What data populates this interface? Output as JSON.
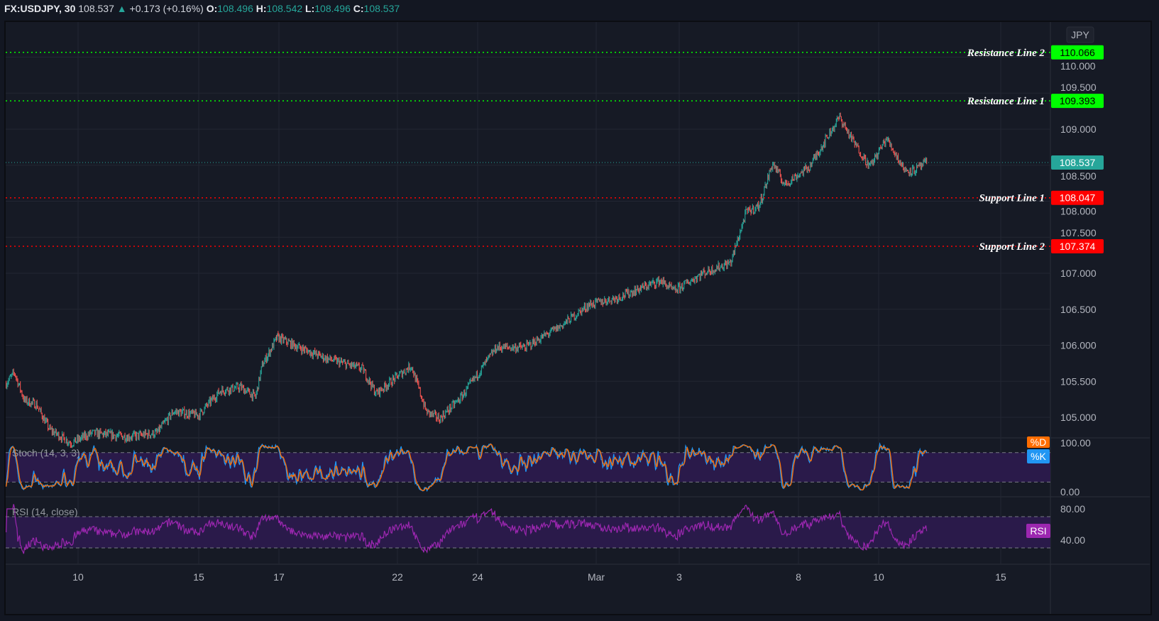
{
  "header": {
    "symbol": "FX:USDJPY, 30",
    "last": "108.537",
    "change_icon": "triangle-up-icon",
    "change": "+0.173 (+0.16%)",
    "o_label": "O:",
    "o": "108.496",
    "h_label": "H:",
    "h": "108.542",
    "l_label": "L:",
    "l": "108.496",
    "c_label": "C:",
    "c": "108.537"
  },
  "currency": "JPY",
  "colors": {
    "up": "#26a69a",
    "down": "#ef5350",
    "resistance": "#00ff00",
    "support": "#ff0000",
    "stoch_k": "#2196f3",
    "stoch_d": "#ff6d00",
    "rsi": "#9c27b0",
    "band": "#2a1a4a"
  },
  "chart_data": [
    {
      "type": "candlestick",
      "title": "FX:USDJPY, 30",
      "ylim": [
        104.6,
        110.4
      ],
      "y_ticks": [
        "105.000",
        "105.500",
        "106.000",
        "106.500",
        "107.000",
        "107.500",
        "108.000",
        "108.500",
        "109.000",
        "109.500",
        "110.000"
      ],
      "x_ticks": [
        "10",
        "15",
        "17",
        "22",
        "24",
        "Mar",
        "3",
        "8",
        "10",
        "15"
      ],
      "price_path": [
        [
          "Feb 08 05:00",
          105.47
        ],
        [
          "Feb 08 10:00",
          105.62
        ],
        [
          "Feb 08 16:00",
          105.23
        ],
        [
          "Feb 08 23:00",
          105.18
        ],
        [
          "Feb 09 07:00",
          104.83
        ],
        [
          "Feb 09 20:00",
          104.64
        ],
        [
          "Feb 10 08:00",
          104.78
        ],
        [
          "Feb 11 06:00",
          104.73
        ],
        [
          "Feb 11 23:00",
          104.78
        ],
        [
          "Feb 12 09:00",
          105.08
        ],
        [
          "Feb 15 00:00",
          105.03
        ],
        [
          "Feb 15 13:00",
          105.37
        ],
        [
          "Feb 16 01:00",
          105.42
        ],
        [
          "Feb 16 10:00",
          105.28
        ],
        [
          "Feb 16 14:00",
          105.72
        ],
        [
          "Feb 16 23:00",
          106.11
        ],
        [
          "Feb 17 12:00",
          105.97
        ],
        [
          "Feb 18 04:00",
          105.82
        ],
        [
          "Feb 19 02:00",
          105.67
        ],
        [
          "Feb 19 10:00",
          105.33
        ],
        [
          "Feb 22 07:00",
          105.72
        ],
        [
          "Feb 22 16:00",
          105.08
        ],
        [
          "Feb 23 00:00",
          104.98
        ],
        [
          "Feb 23 13:00",
          105.28
        ],
        [
          "Feb 24 10:00",
          105.97
        ],
        [
          "Feb 25 03:00",
          105.97
        ],
        [
          "Feb 26 00:00",
          106.26
        ],
        [
          "Feb 26 17:00",
          106.56
        ],
        [
          "Mar 01 10:00",
          106.66
        ],
        [
          "Mar 02 12:00",
          106.9
        ],
        [
          "Mar 02 20:00",
          106.75
        ],
        [
          "Mar 03 13:00",
          107.0
        ],
        [
          "Mar 04 06:00",
          107.15
        ],
        [
          "Mar 04 15:00",
          107.84
        ],
        [
          "Mar 04 23:00",
          107.94
        ],
        [
          "Mar 05 07:00",
          108.53
        ],
        [
          "Mar 05 14:00",
          108.23
        ],
        [
          "Mar 08 05:00",
          108.48
        ],
        [
          "Mar 08 15:00",
          108.87
        ],
        [
          "Mar 08 23:00",
          109.17
        ],
        [
          "Mar 09 06:00",
          108.87
        ],
        [
          "Mar 09 17:00",
          108.48
        ],
        [
          "Mar 10 03:00",
          108.87
        ],
        [
          "Mar 10 14:00",
          108.43
        ],
        [
          "Mar 10 20:00",
          108.43
        ],
        [
          "Mar 11 03:00",
          108.54
        ]
      ],
      "current_price": {
        "value": 108.537,
        "label": "108.537"
      },
      "levels": [
        {
          "name": "Resistance Line 2",
          "value": 110.066,
          "label": "110.066",
          "kind": "resistance"
        },
        {
          "name": "Resistance Line 1",
          "value": 109.393,
          "label": "109.393",
          "kind": "resistance"
        },
        {
          "name": "Support Line 1",
          "value": 108.047,
          "label": "108.047",
          "kind": "support"
        },
        {
          "name": "Support Line 2",
          "value": 107.374,
          "label": "107.374",
          "kind": "support"
        }
      ]
    },
    {
      "type": "line",
      "title": "Stoch (14, 3, 3)",
      "ylim": [
        0,
        100
      ],
      "y_ticks": [
        "100.00",
        "0.00"
      ],
      "bands": [
        20,
        80
      ],
      "series": [
        {
          "name": "%K"
        },
        {
          "name": "%D"
        }
      ]
    },
    {
      "type": "line",
      "title": "RSI (14, close)",
      "y_ticks": [
        "80.00",
        "40.00"
      ],
      "bands": [
        30,
        70
      ],
      "series": [
        {
          "name": "RSI"
        }
      ]
    }
  ]
}
